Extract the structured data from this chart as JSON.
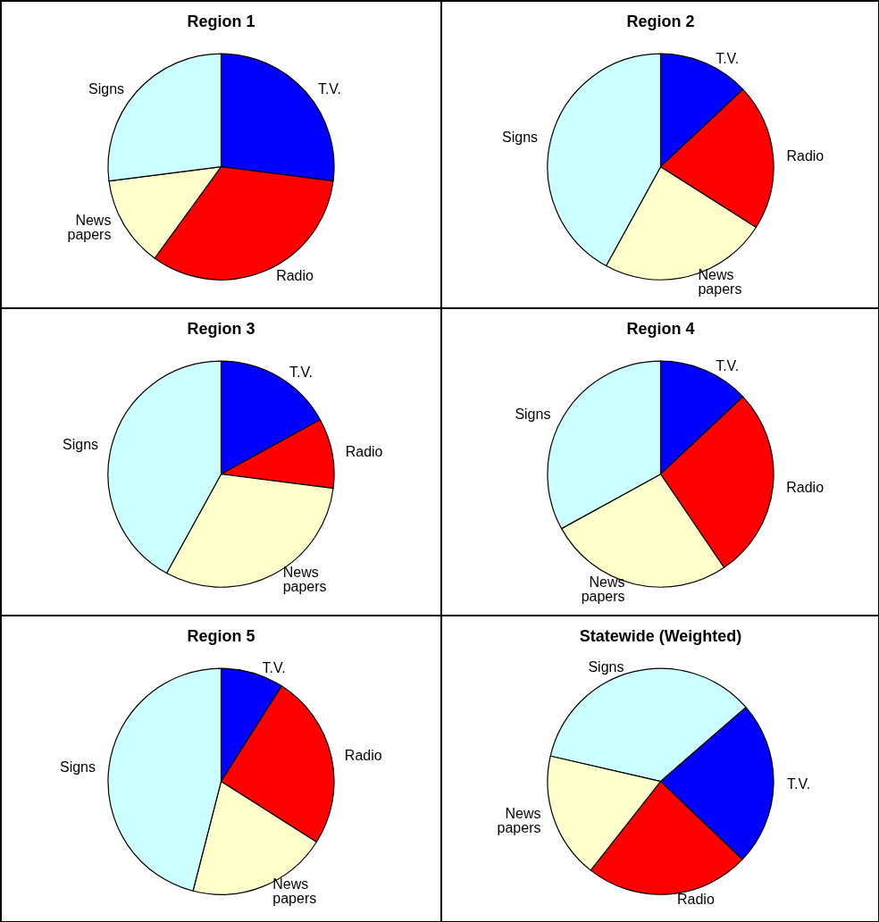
{
  "chart_data": [
    {
      "type": "pie",
      "title": "Region 1",
      "categories": [
        "T.V.",
        "Radio",
        "News\npapers",
        "Signs"
      ],
      "values": [
        27,
        33,
        13,
        27
      ],
      "colors": [
        "#0000ff",
        "#ff0000",
        "#ffffcc",
        "#ccffff"
      ]
    },
    {
      "type": "pie",
      "title": "Region 2",
      "categories": [
        "T.V.",
        "Radio",
        "News\npapers",
        "Signs"
      ],
      "values": [
        13,
        21,
        24,
        42
      ],
      "colors": [
        "#0000ff",
        "#ff0000",
        "#ffffcc",
        "#ccffff"
      ]
    },
    {
      "type": "pie",
      "title": "Region 3",
      "categories": [
        "T.V.",
        "Radio",
        "News\npapers",
        "Signs"
      ],
      "values": [
        17,
        10,
        31,
        42
      ],
      "colors": [
        "#0000ff",
        "#ff0000",
        "#ffffcc",
        "#ccffff"
      ]
    },
    {
      "type": "pie",
      "title": "Region 4",
      "categories": [
        "T.V.",
        "Radio",
        "News\npapers",
        "Signs"
      ],
      "values": [
        13,
        27.5,
        26.5,
        33
      ],
      "colors": [
        "#0000ff",
        "#ff0000",
        "#ffffcc",
        "#ccffff"
      ]
    },
    {
      "type": "pie",
      "title": "Region 5",
      "categories": [
        "T.V.",
        "Radio",
        "News\npapers",
        "Signs"
      ],
      "values": [
        9,
        25,
        20,
        46
      ],
      "colors": [
        "#0000ff",
        "#ff0000",
        "#ffffcc",
        "#ccffff"
      ]
    },
    {
      "type": "pie",
      "title": "Statewide (Weighted)",
      "categories": [
        "Signs",
        "T.V.",
        "Radio",
        "News\npapers"
      ],
      "values": [
        35,
        23.5,
        23.5,
        18
      ],
      "colors": [
        "#ccffff",
        "#0000ff",
        "#ff0000",
        "#ffffcc"
      ]
    }
  ]
}
